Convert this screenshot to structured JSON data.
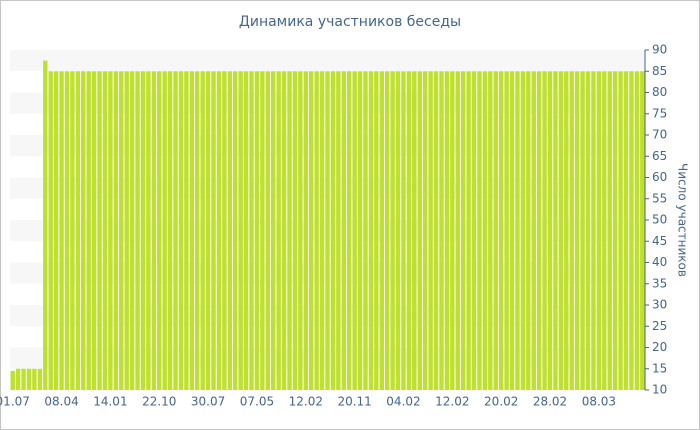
{
  "chart_data": {
    "type": "bar",
    "title": "Динамика участников беседы",
    "y_label": "Число участников",
    "color": "#bfe02f",
    "categories": [
      "01.07",
      null,
      null,
      null,
      null,
      null,
      null,
      null,
      null,
      "08.04",
      null,
      null,
      null,
      null,
      null,
      null,
      null,
      null,
      "14.01",
      null,
      null,
      null,
      null,
      null,
      null,
      null,
      null,
      "22.10",
      null,
      null,
      null,
      null,
      null,
      null,
      null,
      null,
      "30.07",
      null,
      null,
      null,
      null,
      null,
      null,
      null,
      null,
      "07.05",
      null,
      null,
      null,
      null,
      null,
      null,
      null,
      null,
      "12.02",
      null,
      null,
      null,
      null,
      null,
      null,
      null,
      null,
      "20.11",
      null,
      null,
      null,
      null,
      null,
      null,
      null,
      null,
      "04.02",
      null,
      null,
      null,
      null,
      null,
      null,
      null,
      null,
      "12.02",
      null,
      null,
      null,
      null,
      null,
      null,
      null,
      null,
      "20.02",
      null,
      null,
      null,
      null,
      null,
      null,
      null,
      null,
      "28.02",
      null,
      null,
      null,
      null,
      null,
      null,
      null,
      null,
      "08.03",
      null,
      null,
      null,
      null,
      null,
      null,
      null,
      null
    ],
    "values": [
      14.5,
      15,
      15,
      15,
      15,
      15,
      87.5,
      85,
      85,
      85,
      85,
      85,
      85,
      85,
      85,
      85,
      85,
      85,
      85,
      85,
      85,
      85,
      85,
      85,
      85,
      85,
      85,
      85,
      85,
      85,
      85,
      85,
      85,
      85,
      85,
      85,
      85,
      85,
      85,
      85,
      85,
      85,
      85,
      85,
      85,
      85,
      85,
      85,
      85,
      85,
      85,
      85,
      85,
      85,
      85,
      85,
      85,
      85,
      85,
      85,
      85,
      85,
      85,
      85,
      85,
      85,
      85,
      85,
      85,
      85,
      85,
      85,
      85,
      85,
      85,
      85,
      85,
      85,
      85,
      85,
      85,
      85,
      85,
      85,
      85,
      85,
      85,
      85,
      85,
      85,
      85,
      85,
      85,
      85,
      85,
      85,
      85,
      85,
      85,
      85,
      85,
      85,
      85,
      85,
      85,
      85,
      85,
      85,
      85,
      85,
      85,
      85,
      85,
      85,
      85,
      85,
      85
    ],
    "ylim": [
      10,
      90
    ],
    "yticks": [
      10,
      15,
      20,
      25,
      30,
      35,
      40,
      45,
      50,
      55,
      60,
      65,
      70,
      75,
      80,
      85,
      90
    ]
  }
}
